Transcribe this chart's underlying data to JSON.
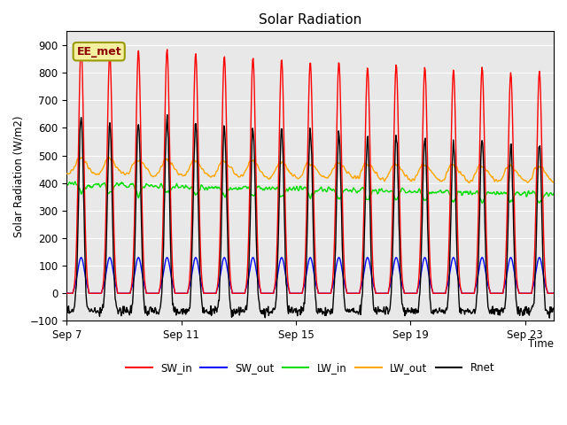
{
  "title": "Solar Radiation",
  "ylabel": "Solar Radiation (W/m2)",
  "xlabel": "Time",
  "ylim": [
    -100,
    950
  ],
  "yticks": [
    -100,
    0,
    100,
    200,
    300,
    400,
    500,
    600,
    700,
    800,
    900
  ],
  "bg_color": "#e8e8e8",
  "annotation_text": "EE_met",
  "annotation_box_color": "#f5f0a0",
  "annotation_border_color": "#999900",
  "annotation_text_color": "#8b0000",
  "xtick_labels": [
    "Sep 7",
    "Sep 11",
    "Sep 15",
    "Sep 19",
    "Sep 23"
  ],
  "xtick_positions": [
    0,
    4,
    8,
    12,
    16
  ],
  "series_colors": {
    "SW_in": "#ff0000",
    "SW_out": "#0000ff",
    "LW_in": "#00dd00",
    "LW_out": "#ffa500",
    "Rnet": "#000000"
  },
  "n_days": 17,
  "figsize": [
    6.4,
    4.8
  ],
  "dpi": 100
}
